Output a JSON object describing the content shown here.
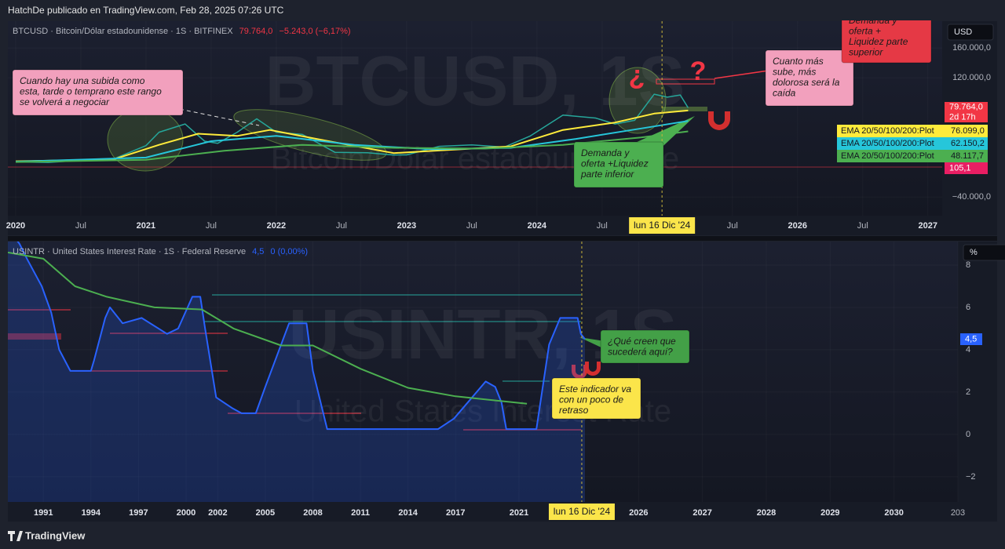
{
  "header": "HatchDe publicado en TradingView.com, Feb 28, 2025 07:26 UTC",
  "footer": "TradingView",
  "chart_data": [
    {
      "type": "line",
      "title": "BTCUSD · Bitcoin/Dólar estadounidense · 1S · BITFINEX",
      "last": "79.764,0",
      "change": "−5.243,0 (−6,17%)",
      "watermark": [
        "BTCUSD, 1S",
        "Bitcoin/Dólar estadounidense"
      ],
      "currency": "USD",
      "xlim": [
        2019.94,
        2027.11
      ],
      "xticks": [
        2020,
        {
          "value": 2020.5,
          "label": "Jul"
        },
        2021,
        {
          "value": 2021.5,
          "label": "Jul"
        },
        2022,
        {
          "value": 2022.5,
          "label": "Jul"
        },
        2023,
        {
          "value": 2023.5,
          "label": "Jul"
        },
        2024,
        {
          "value": 2024.5,
          "label": "Jul"
        },
        {
          "value": 2025.5,
          "label": "Jul"
        },
        2026,
        {
          "value": 2026.5,
          "label": "Jul"
        },
        2027
      ],
      "cursor": {
        "value": 2024.96,
        "label": "lun 16 Dic '24"
      },
      "ylim": [
        -65000,
        196000
      ],
      "yticks": [
        {
          "value": 160000,
          "label": "160.000,0"
        },
        {
          "value": 120000,
          "label": "120.000,0"
        },
        {
          "value": -40000,
          "label": "−40.000,0"
        }
      ],
      "grid": true,
      "series": [
        {
          "color": "#26a69a",
          "x": [
            2020.0,
            2020.25,
            2020.5,
            2020.75,
            2021.0,
            2021.1,
            2021.3,
            2021.45,
            2021.55,
            2021.7,
            2021.85,
            2022.0,
            2022.2,
            2022.45,
            2022.7,
            2022.9,
            2023.0,
            2023.25,
            2023.5,
            2023.75,
            2023.95,
            2024.2,
            2024.45,
            2024.6,
            2024.75,
            2024.9,
            2025.0,
            2025.1,
            2025.16
          ],
          "values": [
            7200,
            6500,
            9200,
            11000,
            29000,
            47000,
            58000,
            35000,
            32000,
            47000,
            65000,
            47000,
            44000,
            20000,
            19500,
            16500,
            16600,
            28000,
            30000,
            27000,
            42000,
            70000,
            66000,
            58000,
            63000,
            98000,
            94000,
            97000,
            79764
          ]
        },
        {
          "color": "#ffeb3b",
          "x": [
            2020.0,
            2020.75,
            2021.1,
            2021.4,
            2021.7,
            2021.95,
            2022.4,
            2022.9,
            2023.3,
            2023.8,
            2024.2,
            2024.6,
            2024.9,
            2025.16
          ],
          "values": [
            8000,
            10500,
            30000,
            45000,
            42000,
            50000,
            35000,
            19000,
            23000,
            28000,
            50000,
            60000,
            72000,
            76099
          ]
        },
        {
          "color": "#26c6da",
          "x": [
            2020.0,
            2021.0,
            2021.5,
            2022.0,
            2022.6,
            2023.2,
            2023.8,
            2024.3,
            2024.8,
            2025.16
          ],
          "values": [
            7500,
            13000,
            35000,
            42000,
            30000,
            24000,
            26000,
            38000,
            52000,
            62150
          ]
        },
        {
          "color": "#4caf50",
          "x": [
            2020.0,
            2021.0,
            2021.6,
            2022.2,
            2022.9,
            2023.6,
            2024.2,
            2024.8,
            2025.16
          ],
          "values": [
            7000,
            10000,
            22000,
            30000,
            26000,
            25000,
            30000,
            40000,
            48117
          ]
        }
      ],
      "badges": [
        {
          "label": "79.764,0",
          "color": "#f23645"
        },
        {
          "label": "2d 17h",
          "color": "#f23645"
        },
        {
          "name": "EMA 20/50/100/200:Plot",
          "label": "76.099,0",
          "color": "#ffeb3b"
        },
        {
          "name": "EMA 20/50/100/200:Plot",
          "label": "62.150,2",
          "color": "#26c6da"
        },
        {
          "name": "EMA 20/50/100/200:Plot",
          "label": "48.117,7",
          "color": "#4caf50"
        },
        {
          "label": "105,1",
          "color": "#e91e63"
        }
      ],
      "annotations": [
        {
          "lines": [
            "Cuando hay una subida como",
            "esta, tarde o temprano este rango",
            "se volverá a negociar"
          ],
          "color": "#f2a0bd"
        },
        {
          "lines": [
            "Cuanto más",
            "sube,  más",
            "dolorosa será la",
            "caída"
          ],
          "color": "#f2a0bd"
        },
        {
          "lines": [
            "Demanda y",
            "oferta +",
            "Liquidez parte",
            "superior"
          ],
          "color": "#e53945"
        },
        {
          "lines": [
            "Demanda y",
            "oferta +Liquidez",
            "parte inferior"
          ],
          "color": "#4caf50"
        }
      ],
      "symbols": [
        "¿",
        "?"
      ]
    },
    {
      "type": "line",
      "title": "USINTR · United States Interest Rate · 1S · Federal Reserve",
      "last": "4,5",
      "change": "0 (0,00%)",
      "watermark": [
        "USINTR, 1S",
        "United States Interest Rate"
      ],
      "currency": "%",
      "xlim": [
        1988.76,
        2031.0
      ],
      "xticks": [
        1991,
        1994,
        1997,
        2000,
        2002,
        2005,
        2008,
        2011,
        2014,
        2017,
        2021,
        2026,
        2027,
        2028,
        2029,
        2030,
        {
          "value": 2031.0,
          "label": "203"
        }
      ],
      "cursor": {
        "value": 2024.96,
        "label": "lun 16 Dic '24"
      },
      "ylim": [
        -3.19,
        9.11
      ],
      "yticks": [
        8,
        6,
        4,
        2,
        0,
        {
          "value": -2,
          "label": "−2"
        }
      ],
      "grid": true,
      "series": [
        {
          "color": "#2962ff",
          "fill": "rgba(41,98,255,0.22)",
          "x": [
            1988.76,
            1989.5,
            1990.0,
            1990.9,
            1991.5,
            1992.0,
            1992.7,
            1994.0,
            1994.2,
            1994.9,
            1995.2,
            1996.0,
            1997.2,
            1998.8,
            1999.5,
            2000.4,
            2000.9,
            2001.2,
            2001.9,
            2002.9,
            2003.5,
            2004.4,
            2005.0,
            2006.5,
            2007.6,
            2008.0,
            2008.9,
            2015.9,
            2016.9,
            2018.9,
            2019.5,
            2019.9,
            2020.2,
            2022.1,
            2022.9,
            2023.6,
            2024.7,
            2024.9,
            2025.16
          ],
          "values": [
            9.75,
            9,
            8.25,
            7,
            5.75,
            4,
            3,
            3,
            3.5,
            5.5,
            6,
            5.25,
            5.5,
            4.75,
            5,
            6.5,
            6.5,
            5,
            1.75,
            1.25,
            1,
            1,
            2.25,
            5.25,
            5.25,
            3,
            0.25,
            0.25,
            0.75,
            2.5,
            2.25,
            1.5,
            0.25,
            0.25,
            4.25,
            5.5,
            5.5,
            4.75,
            4.5
          ]
        },
        {
          "color": "#4caf50",
          "x": [
            1988.76,
            1991,
            1993,
            1995,
            1998,
            2001,
            2003,
            2006,
            2008,
            2011,
            2014,
            2017,
            2021.5
          ],
          "values": [
            8.6,
            8.3,
            7.0,
            6.5,
            6.0,
            5.9,
            5.0,
            4.2,
            4.2,
            3.1,
            2.2,
            1.8,
            1.45
          ]
        }
      ],
      "badges": [
        {
          "label": "4,5",
          "color": "#2962ff"
        }
      ],
      "annotations": [
        {
          "lines": [
            "¿Qué creen que",
            "sucederá aquí?"
          ],
          "color": "#43a047"
        },
        {
          "lines": [
            "Este indicador va",
            "con un poco de",
            "retraso"
          ],
          "color": "#fbe54a"
        }
      ]
    }
  ]
}
